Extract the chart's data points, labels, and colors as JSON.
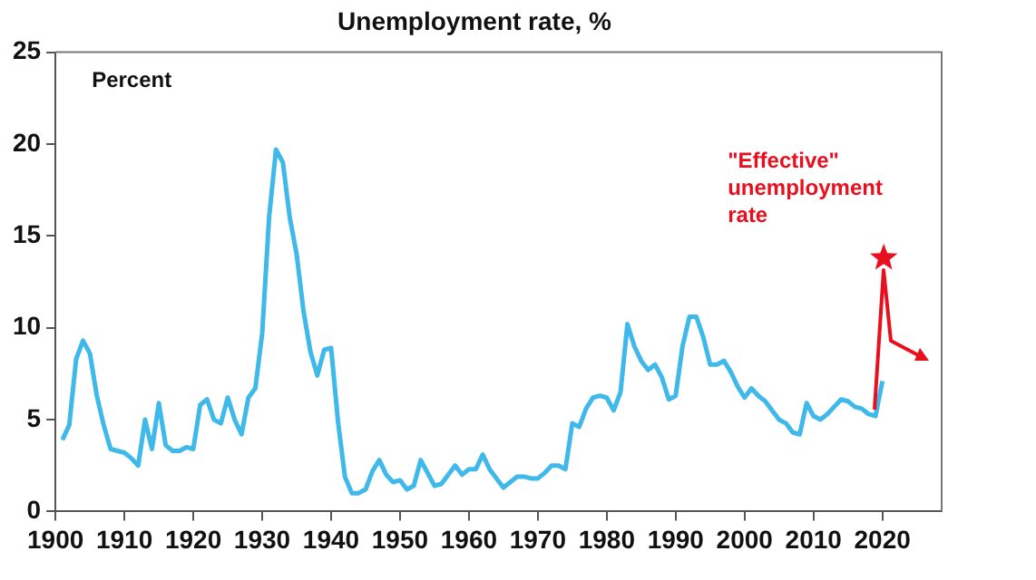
{
  "chart_data": {
    "type": "line",
    "title": "Unemployment rate, %",
    "ylabel": "Percent",
    "xlim": [
      1900,
      2028.6
    ],
    "xticks": [
      1900,
      1910,
      1920,
      1930,
      1940,
      1950,
      1960,
      1970,
      1980,
      1990,
      2000,
      2010,
      2020
    ],
    "ylim": [
      0,
      25
    ],
    "yticks": [
      0,
      5,
      10,
      15,
      20,
      25
    ],
    "grid": false,
    "legend": false,
    "marker": "none",
    "x": [
      1901,
      1902,
      1903,
      1904,
      1905,
      1906,
      1907,
      1908,
      1909,
      1910,
      1911,
      1912,
      1913,
      1914,
      1915,
      1916,
      1917,
      1918,
      1919,
      1920,
      1921,
      1922,
      1923,
      1924,
      1925,
      1926,
      1927,
      1928,
      1929,
      1930,
      1931,
      1932,
      1933,
      1934,
      1935,
      1936,
      1937,
      1938,
      1939,
      1940,
      1941,
      1942,
      1943,
      1944,
      1945,
      1946,
      1947,
      1948,
      1949,
      1950,
      1951,
      1952,
      1953,
      1954,
      1955,
      1956,
      1957,
      1958,
      1959,
      1960,
      1961,
      1962,
      1963,
      1964,
      1965,
      1966,
      1967,
      1968,
      1969,
      1970,
      1971,
      1972,
      1973,
      1974,
      1975,
      1976,
      1977,
      1978,
      1979,
      1980,
      1981,
      1982,
      1983,
      1984,
      1985,
      1986,
      1987,
      1988,
      1989,
      1990,
      1991,
      1992,
      1993,
      1994,
      1995,
      1996,
      1997,
      1998,
      1999,
      2000,
      2001,
      2002,
      2003,
      2004,
      2005,
      2006,
      2007,
      2008,
      2009,
      2010,
      2011,
      2012,
      2013,
      2014,
      2015,
      2016,
      2017,
      2018,
      2019,
      2020
    ],
    "series": [
      {
        "color": "#3fb8ea",
        "values": [
          3.9,
          4.7,
          8.3,
          9.3,
          8.6,
          6.3,
          4.7,
          3.4,
          3.3,
          3.2,
          2.9,
          2.5,
          5.0,
          3.4,
          5.9,
          3.6,
          3.3,
          3.3,
          3.5,
          3.4,
          5.8,
          6.1,
          5.0,
          4.8,
          6.2,
          5.0,
          4.2,
          6.2,
          6.7,
          9.7,
          16.0,
          19.7,
          19.0,
          16.0,
          14.0,
          10.9,
          8.7,
          7.4,
          8.8,
          8.9,
          4.9,
          1.9,
          1.0,
          1.0,
          1.2,
          2.2,
          2.8,
          2.0,
          1.6,
          1.7,
          1.2,
          1.4,
          2.8,
          2.1,
          1.4,
          1.5,
          2.0,
          2.5,
          2.0,
          2.3,
          2.3,
          3.1,
          2.3,
          1.8,
          1.3,
          1.6,
          1.9,
          1.9,
          1.8,
          1.8,
          2.1,
          2.5,
          2.5,
          2.3,
          4.8,
          4.6,
          5.6,
          6.2,
          6.3,
          6.2,
          5.5,
          6.5,
          10.2,
          9.0,
          8.2,
          7.7,
          8.0,
          7.3,
          6.1,
          6.3,
          9.0,
          10.6,
          10.6,
          9.5,
          8.0,
          8.0,
          8.2,
          7.6,
          6.8,
          6.2,
          6.7,
          6.3,
          6.0,
          5.5,
          5.0,
          4.8,
          4.3,
          4.2,
          5.9,
          5.2,
          5.0,
          5.3,
          5.7,
          6.1,
          6.0,
          5.7,
          5.6,
          5.3,
          5.2,
          7.1
        ]
      },
      {
        "type": "scatter",
        "name": "\"Effective\" unemployment rate",
        "color": "#e8101e",
        "marker": "star",
        "x": [
          2020.2
        ],
        "values": [
          13.8
        ]
      }
    ]
  }
}
